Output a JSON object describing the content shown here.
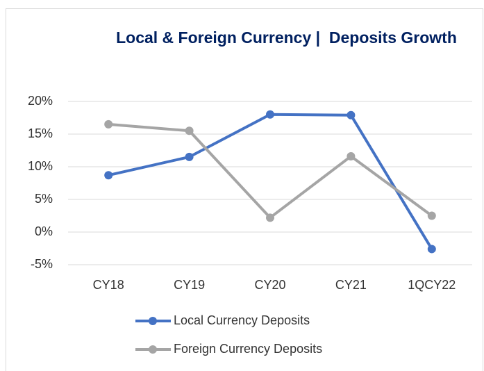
{
  "chart_data": {
    "type": "line",
    "title": "Local & Foreign Currency |  Deposits Growth",
    "categories": [
      "CY18",
      "CY19",
      "CY20",
      "CY21",
      "1QCY22"
    ],
    "series": [
      {
        "name": "Local Currency Deposits",
        "color": "#4472c4",
        "values": [
          8.7,
          11.5,
          18.0,
          17.9,
          -2.6
        ]
      },
      {
        "name": "Foreign Currency Deposits",
        "color": "#a5a5a5",
        "values": [
          16.5,
          15.5,
          2.2,
          11.6,
          2.5
        ]
      }
    ],
    "ylim": [
      -5,
      20
    ],
    "yticks": [
      {
        "value": -5,
        "label": "-5%"
      },
      {
        "value": 0,
        "label": "0%"
      },
      {
        "value": 5,
        "label": "5%"
      },
      {
        "value": 10,
        "label": "10%"
      },
      {
        "value": 15,
        "label": "15%"
      },
      {
        "value": 20,
        "label": "20%"
      }
    ],
    "grid": true
  }
}
